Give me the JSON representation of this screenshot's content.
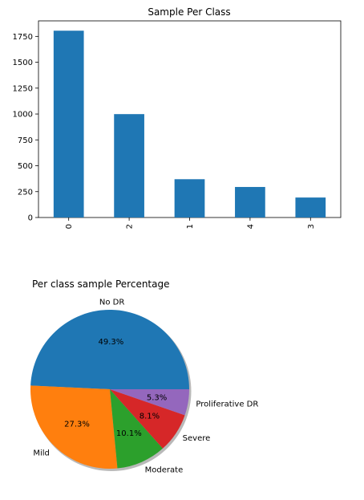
{
  "chart_data": [
    {
      "type": "bar",
      "title": "Sample Per Class",
      "xlabel": "",
      "ylabel": "",
      "categories": [
        "0",
        "2",
        "1",
        "4",
        "3"
      ],
      "values": [
        1805,
        999,
        370,
        295,
        193
      ],
      "ylim": [
        0,
        1900
      ],
      "yticks": [
        0,
        250,
        500,
        750,
        1000,
        1250,
        1500,
        1750
      ],
      "color": "#1f77b4",
      "grid": false
    },
    {
      "type": "pie",
      "title": "Per class sample Percentage",
      "slices": [
        {
          "label": "No DR",
          "pct_label": "49.3%",
          "value": 49.3,
          "color": "#1f77b4"
        },
        {
          "label": "Mild",
          "pct_label": "27.3%",
          "value": 27.3,
          "color": "#ff7f0e"
        },
        {
          "label": "Moderate",
          "pct_label": "10.1%",
          "value": 10.1,
          "color": "#2ca02c"
        },
        {
          "label": "Severe",
          "pct_label": "8.1%",
          "value": 8.1,
          "color": "#d62728"
        },
        {
          "label": "Proliferative DR",
          "pct_label": "5.3%",
          "value": 5.3,
          "color": "#9467bd"
        }
      ],
      "shadow": true,
      "startangle": 0
    }
  ]
}
